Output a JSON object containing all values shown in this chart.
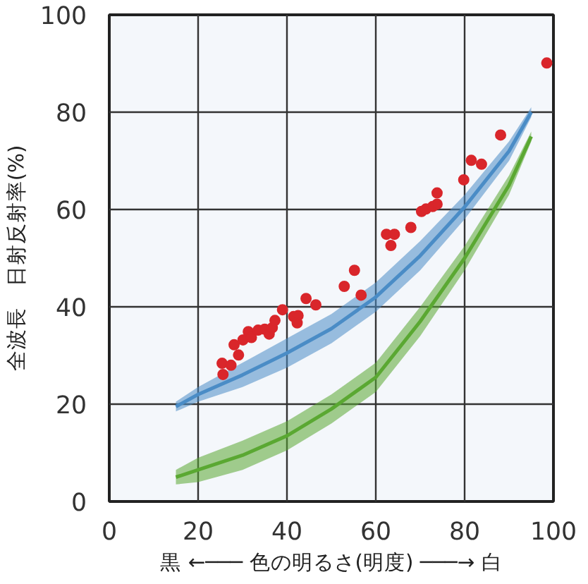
{
  "chart_data": {
    "type": "scatter",
    "xlabel": "黒 ←─── 色の明るさ(明度) ───→ 白",
    "ylabel": "全波長　日射反射率(%)",
    "xlim": [
      0,
      100
    ],
    "ylim": [
      0,
      100
    ],
    "xticks": [
      0,
      20,
      40,
      60,
      80,
      100
    ],
    "yticks": [
      0,
      20,
      40,
      60,
      80,
      100
    ],
    "grid": true,
    "series": [
      {
        "type": "line",
        "color": "#4a8cc6",
        "x": [
          15,
          20,
          30,
          40,
          50,
          60,
          70,
          80,
          90,
          95
        ],
        "values": [
          19.5,
          22,
          26,
          30.5,
          35.5,
          42,
          50.5,
          60.5,
          72,
          80
        ],
        "lower": [
          18.5,
          20.5,
          23.5,
          27.5,
          32.5,
          39,
          47.5,
          58,
          70,
          79
        ],
        "upper": [
          20.5,
          23.5,
          28.5,
          33.5,
          38.5,
          45,
          53.5,
          63,
          74,
          81
        ]
      },
      {
        "type": "line",
        "color": "#5aa832",
        "x": [
          15,
          20,
          30,
          40,
          50,
          60,
          70,
          80,
          90,
          95
        ],
        "values": [
          5,
          6.5,
          9.5,
          13.5,
          19,
          25.5,
          37,
          50,
          65,
          75
        ],
        "lower": [
          3.5,
          4,
          6.5,
          10.5,
          16,
          22.5,
          34,
          47.5,
          63,
          74
        ],
        "upper": [
          6.5,
          9,
          12.5,
          16.5,
          22,
          28.5,
          40,
          52.5,
          67,
          76
        ]
      },
      {
        "marker": "circle",
        "color": "#d9262b",
        "x": [
          25.4,
          27.4,
          25.6,
          28.1,
          29.1,
          30.1,
          31.3,
          32.0,
          33.5,
          35.0,
          36.0,
          36.7,
          37.3,
          39.0,
          41.5,
          42.5,
          42.3,
          44.3,
          46.5,
          52.9,
          55.2,
          56.7,
          62.4,
          64.2,
          63.4,
          67.9,
          70.3,
          71.3,
          72.8,
          73.8,
          73.8,
          79.8,
          81.5,
          83.8,
          88.1,
          98.5
        ],
        "values": [
          28.4,
          28.0,
          26.1,
          32.2,
          30.1,
          33.2,
          34.9,
          33.7,
          35.2,
          35.4,
          34.4,
          35.7,
          37.2,
          39.4,
          38.0,
          38.2,
          36.7,
          41.7,
          40.4,
          44.2,
          47.5,
          42.4,
          54.9,
          54.9,
          52.6,
          56.3,
          59.6,
          60.1,
          60.6,
          61.1,
          63.4,
          66.1,
          70.1,
          69.3,
          75.3,
          90.1
        ]
      }
    ]
  }
}
